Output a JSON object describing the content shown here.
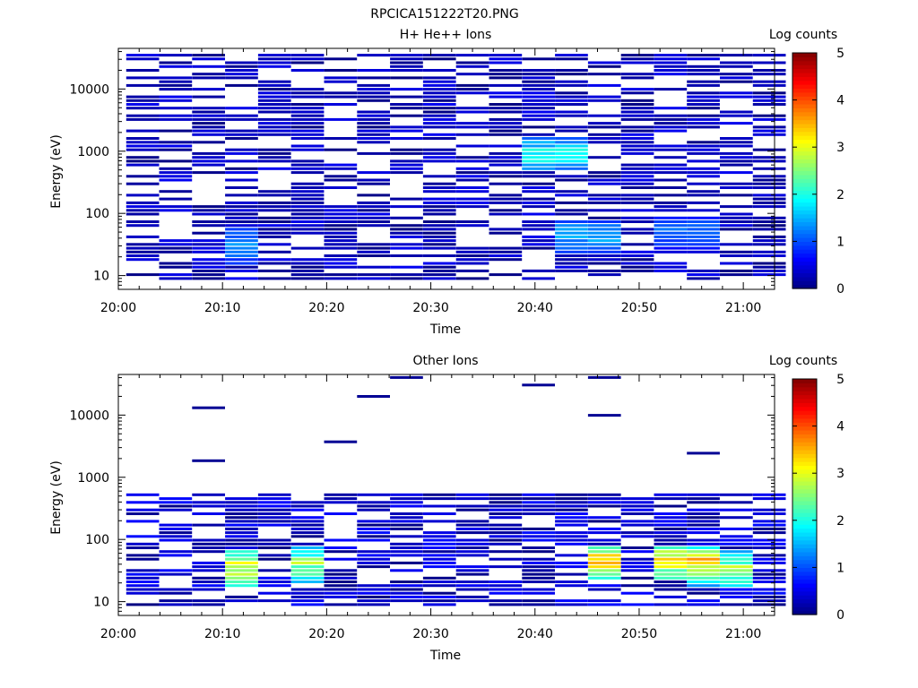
{
  "title": "RPCICA151222T20.PNG",
  "colorbar": {
    "label": "Log counts",
    "ticks": [
      "0",
      "1",
      "2",
      "3",
      "4",
      "5"
    ],
    "min": 0,
    "max": 5
  },
  "chart_data": [
    {
      "type": "heatmap",
      "title": "H+ He++ Ions",
      "xlabel": "Time",
      "ylabel": "Energy (eV)",
      "yscale": "log",
      "ylim": [
        6,
        45000
      ],
      "xlim_minutes": [
        0,
        63
      ],
      "x_ticks": [
        "20:00",
        "20:10",
        "20:20",
        "20:30",
        "20:40",
        "20:50",
        "21:00"
      ],
      "y_ticks": [
        "10",
        "100",
        "1000",
        "10000"
      ],
      "value_label": "Log counts",
      "value_range": [
        0,
        5
      ],
      "time_bins": [
        "20:02:20",
        "20:05:30",
        "20:08:40",
        "20:11:50",
        "20:15:00",
        "20:18:10",
        "20:21:20",
        "20:24:30",
        "20:27:40",
        "20:30:50",
        "20:34:00",
        "20:37:10",
        "20:40:20",
        "20:43:30",
        "20:46:40",
        "20:49:50",
        "20:53:00",
        "20:56:10",
        "20:59:20",
        "21:02:30"
      ],
      "energy_range_ev": [
        10,
        40000
      ],
      "background_level": 0.4,
      "features": [
        {
          "time": "20:12",
          "energy_ev": 30,
          "log_counts": 1.5
        },
        {
          "time": "20:42",
          "energy_ev": 900,
          "log_counts": 2.2
        },
        {
          "time": "20:45",
          "energy_ev": 45,
          "log_counts": 1.6
        },
        {
          "time": "20:54",
          "energy_ev": 50,
          "log_counts": 1.3
        }
      ]
    },
    {
      "type": "heatmap",
      "title": "Other Ions",
      "xlabel": "Time",
      "ylabel": "Energy (eV)",
      "yscale": "log",
      "ylim": [
        6,
        45000
      ],
      "xlim_minutes": [
        0,
        63
      ],
      "x_ticks": [
        "20:00",
        "20:10",
        "20:20",
        "20:30",
        "20:40",
        "20:50",
        "21:00"
      ],
      "y_ticks": [
        "10",
        "100",
        "1000",
        "10000"
      ],
      "value_label": "Log counts",
      "value_range": [
        0,
        5
      ],
      "time_bins": [
        "20:02:20",
        "20:05:30",
        "20:08:40",
        "20:11:50",
        "20:15:00",
        "20:18:10",
        "20:21:20",
        "20:24:30",
        "20:27:40",
        "20:30:50",
        "20:34:00",
        "20:37:10",
        "20:40:20",
        "20:43:30",
        "20:46:40",
        "20:49:50",
        "20:53:00",
        "20:56:10",
        "20:59:20",
        "21:02:30"
      ],
      "energy_range_ev": [
        10,
        600
      ],
      "features": [
        {
          "time": "20:12",
          "energy_ev": 35,
          "log_counts": 3.4
        },
        {
          "time": "20:19",
          "energy_ev": 40,
          "log_counts": 2.8
        },
        {
          "time": "20:46",
          "energy_ev": 45,
          "log_counts": 3.8
        },
        {
          "time": "20:55",
          "energy_ev": 45,
          "log_counts": 3.6
        },
        {
          "time": "20:58",
          "energy_ev": 35,
          "log_counts": 3.0
        }
      ],
      "sparse_high_energy_hits": [
        {
          "time": "20:09",
          "energy_ev": 14000
        },
        {
          "time": "20:09",
          "energy_ev": 1800
        },
        {
          "time": "20:22",
          "energy_ev": 4000
        },
        {
          "time": "20:25",
          "energy_ev": 19000
        },
        {
          "time": "20:28",
          "energy_ev": 40000
        },
        {
          "time": "20:41",
          "energy_ev": 33000
        },
        {
          "time": "20:48",
          "energy_ev": 10500
        },
        {
          "time": "20:48",
          "energy_ev": 40000
        },
        {
          "time": "20:55",
          "energy_ev": 2500
        }
      ]
    }
  ]
}
